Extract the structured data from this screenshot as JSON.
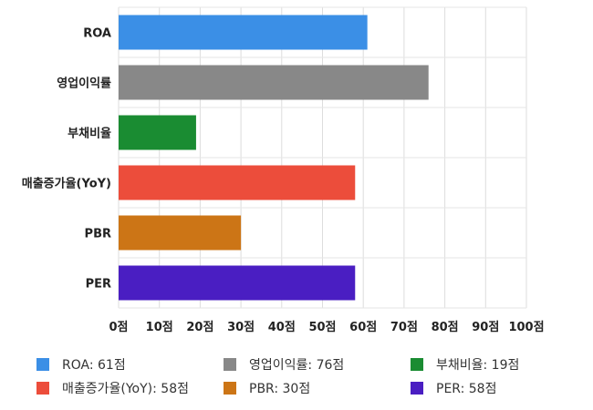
{
  "chart_data": {
    "type": "bar",
    "orientation": "horizontal",
    "categories": [
      "ROA",
      "영업이익률",
      "부채비율",
      "매출증가율(YoY)",
      "PBR",
      "PER"
    ],
    "values": [
      61,
      76,
      19,
      58,
      30,
      58
    ],
    "colors": [
      "#3b8fe6",
      "#888888",
      "#1a8c32",
      "#ec4d3b",
      "#cc7516",
      "#4a1ec2"
    ],
    "xlim": [
      0,
      100
    ],
    "x_ticks": [
      "0점",
      "10점",
      "20점",
      "30점",
      "40점",
      "50점",
      "60점",
      "70점",
      "80점",
      "90점",
      "100점"
    ],
    "grid": true,
    "legend_position": "bottom"
  },
  "legend": [
    {
      "label": "ROA: 61점",
      "color": "#3b8fe6"
    },
    {
      "label": "영업이익률: 76점",
      "color": "#888888"
    },
    {
      "label": "부채비율: 19점",
      "color": "#1a8c32"
    },
    {
      "label": "매출증가율(YoY): 58점",
      "color": "#ec4d3b"
    },
    {
      "label": "PBR: 30점",
      "color": "#cc7516"
    },
    {
      "label": "PER: 58점",
      "color": "#4a1ec2"
    }
  ]
}
